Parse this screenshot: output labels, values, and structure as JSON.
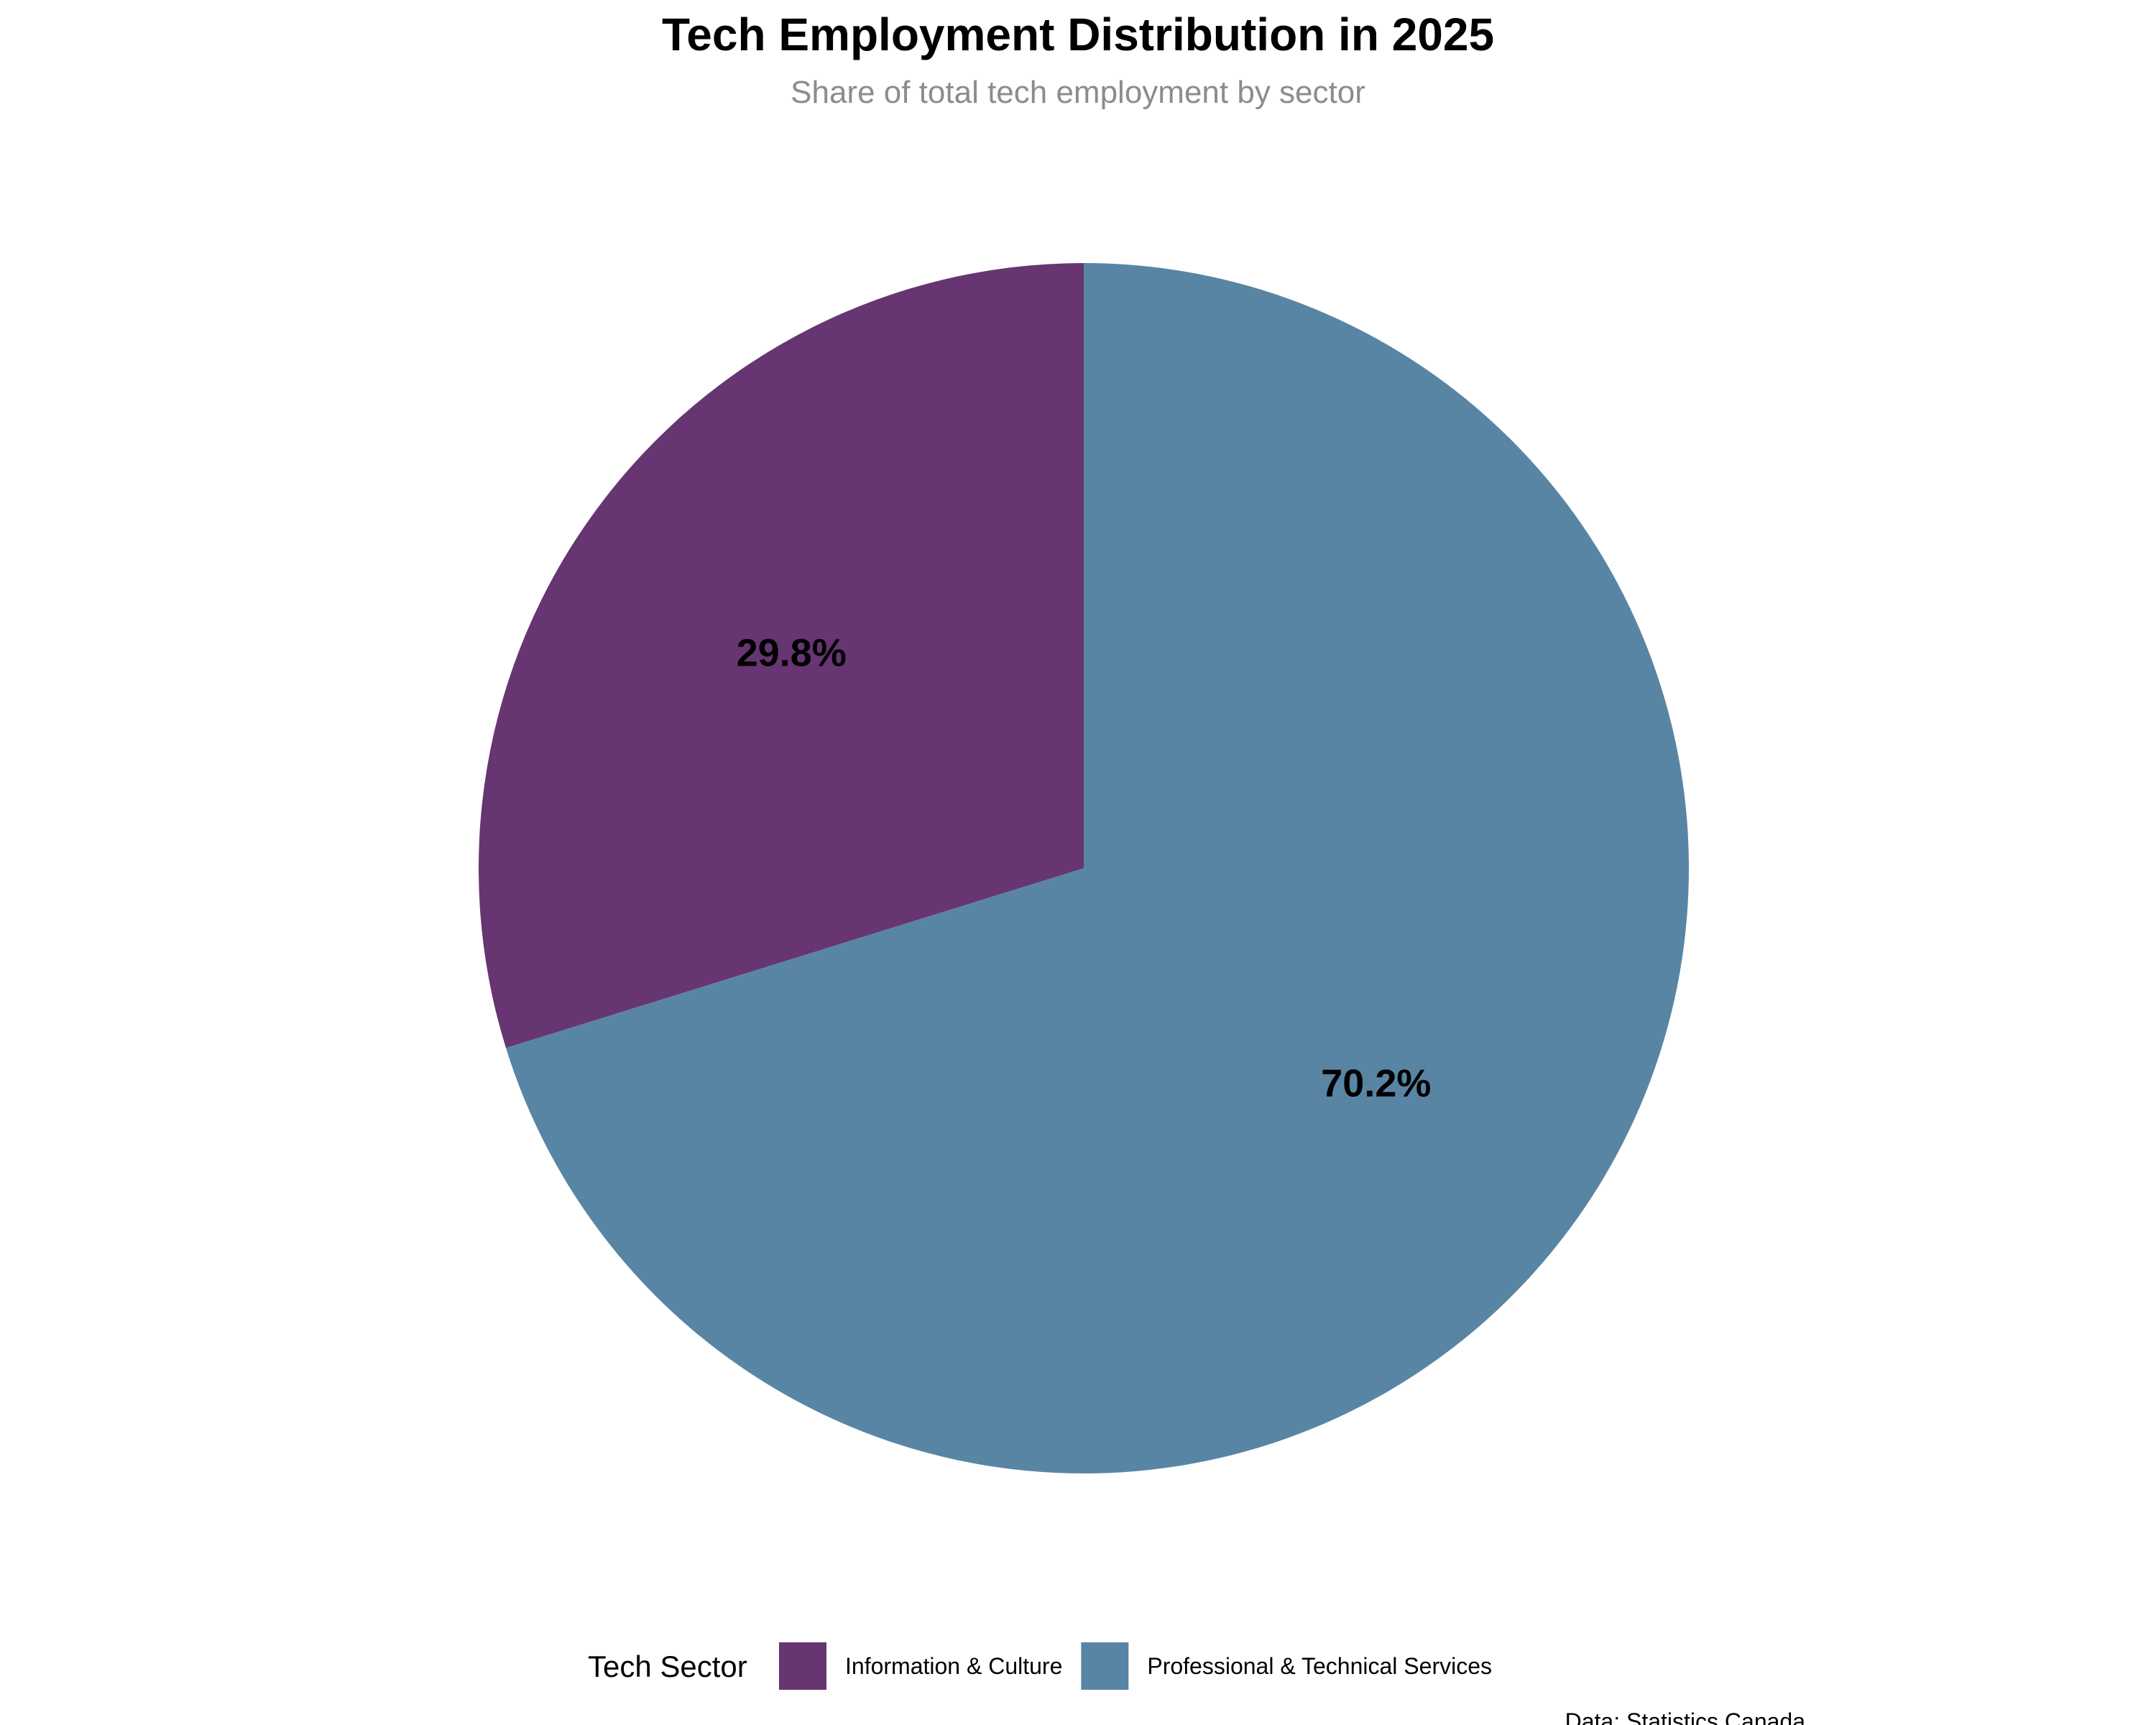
{
  "chart_data": {
    "type": "pie",
    "title": "Tech Employment Distribution in 2025",
    "subtitle": "Share of total tech employment by sector",
    "legend_title": "Tech Sector",
    "legend_placement": "bottom",
    "caption": "Data: Statistics Canada",
    "start_angle_deg": 0,
    "direction": "counterclockwise",
    "slices": [
      {
        "name": "Information & Culture",
        "value": 29.8,
        "label": "29.8%",
        "color": "#673572"
      },
      {
        "name": "Professional & Technical Services",
        "value": 70.2,
        "label": "70.2%",
        "color": "#5985a5"
      }
    ]
  }
}
